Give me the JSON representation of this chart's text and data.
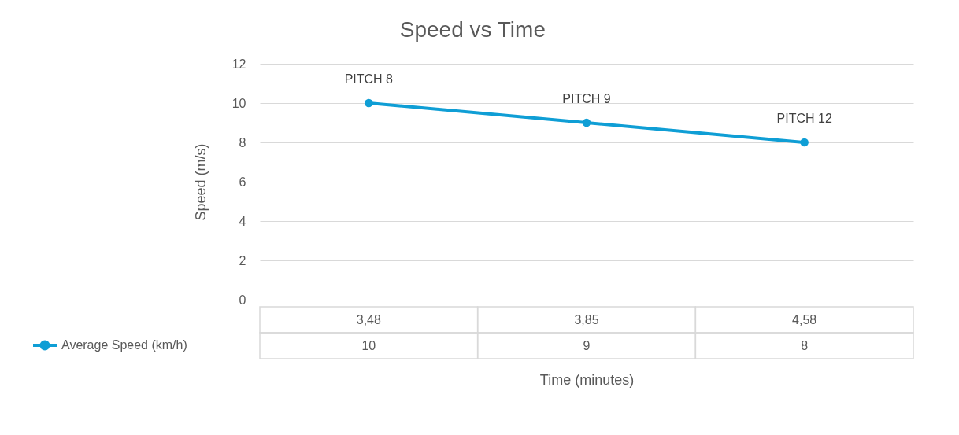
{
  "chart_data": {
    "type": "line",
    "title": "Speed vs Time",
    "xlabel": "Time (minutes)",
    "ylabel": "Speed (m/s)",
    "categories": [
      "3,48",
      "3,85",
      "4,58"
    ],
    "series": [
      {
        "name": "Average Speed (km/h)",
        "color": "#0f9ed5",
        "values": [
          10,
          9,
          8
        ]
      }
    ],
    "ylim": [
      0,
      12
    ],
    "yticks": [
      0,
      2,
      4,
      6,
      8,
      10,
      12
    ],
    "grid": "y",
    "marker": "circle",
    "data_labels": true,
    "legend": "bottom left",
    "annotations": [
      {
        "text": "PITCH 8",
        "x": "3,48",
        "y": 10
      },
      {
        "text": "PITCH 9",
        "x": "3,85",
        "y": 9
      },
      {
        "text": "PITCH 12",
        "x": "4,58",
        "y": 8
      }
    ]
  }
}
